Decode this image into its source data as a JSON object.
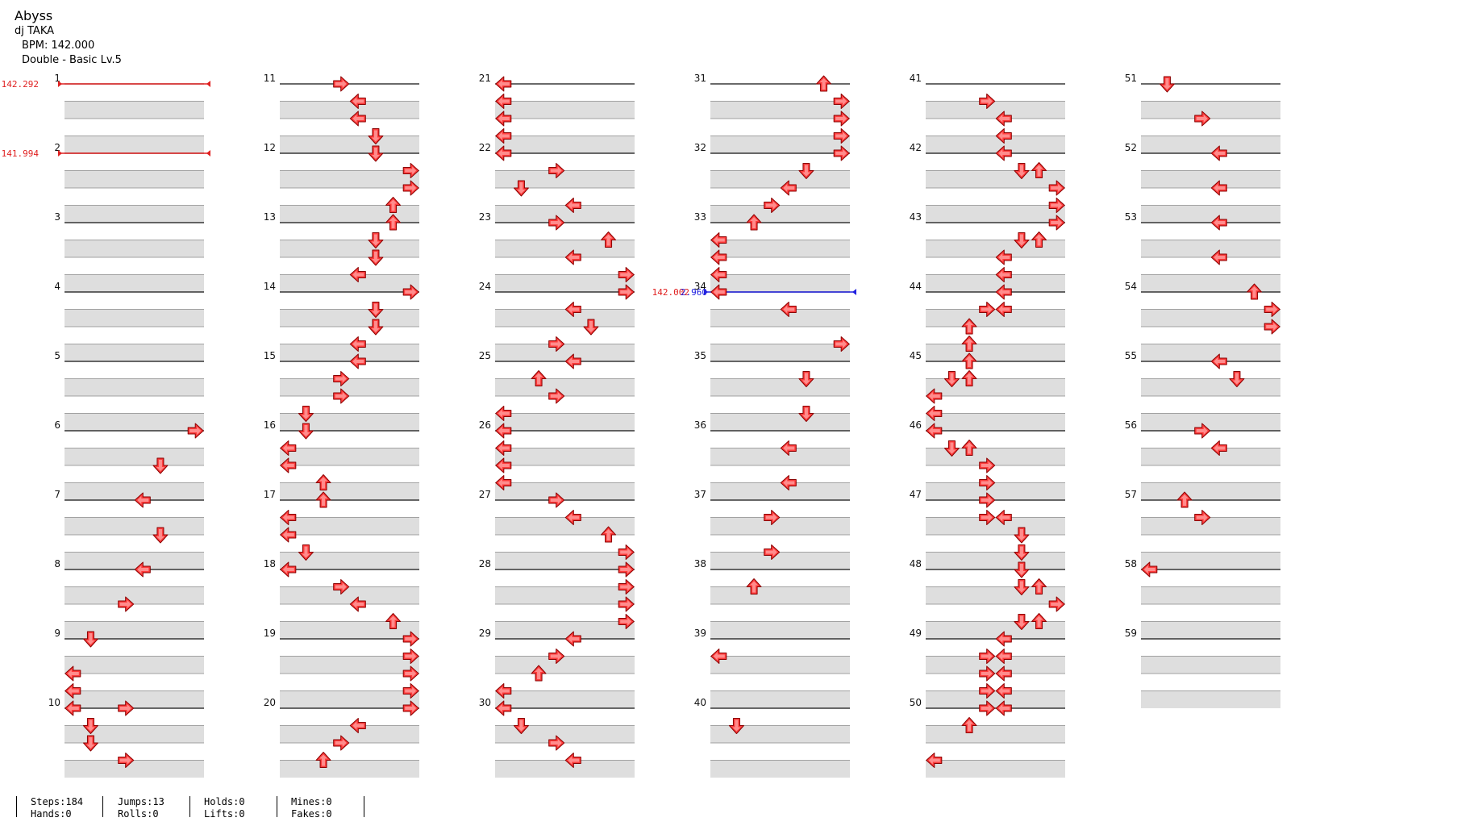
{
  "song": {
    "title": "Abyss",
    "artist": "dj TAKA",
    "bpm_label": "BPM: 142.000",
    "difficulty_label": "Double - Basic  Lv.5"
  },
  "chart": {
    "measures_total": 59,
    "measures_per_column": 10,
    "lanes": 8,
    "stripes_per_measure": 4,
    "bpm_changes": [
      {
        "measure": 1,
        "label": "142.292",
        "color": "#e02020"
      },
      {
        "measure": 2,
        "label": "141.994",
        "color": "#e02020"
      },
      {
        "measure": 34,
        "label": "142.002",
        "color": "#e02020",
        "stop_label": "2.960",
        "stop_color": "#2020e0"
      }
    ],
    "arrow_color": "#ff3b3b",
    "notes": [
      {
        "m": 6,
        "b": 0,
        "l": 7
      },
      {
        "m": 6,
        "b": 2,
        "l": 5
      },
      {
        "m": 7,
        "b": 0,
        "l": 4
      },
      {
        "m": 7,
        "b": 2,
        "l": 5
      },
      {
        "m": 8,
        "b": 0,
        "l": 4
      },
      {
        "m": 8,
        "b": 2,
        "l": 3
      },
      {
        "m": 9,
        "b": 0,
        "l": 1
      },
      {
        "m": 9,
        "b": 2,
        "l": 0
      },
      {
        "m": 9,
        "b": 3,
        "l": 0
      },
      {
        "m": 10,
        "b": 0,
        "l": 0
      },
      {
        "m": 10,
        "b": 0,
        "l": 3
      },
      {
        "m": 10,
        "b": 1,
        "l": 1
      },
      {
        "m": 10,
        "b": 2,
        "l": 1
      },
      {
        "m": 10,
        "b": 3,
        "l": 3
      },
      {
        "m": 11,
        "b": 0,
        "l": 3
      },
      {
        "m": 11,
        "b": 1,
        "l": 4
      },
      {
        "m": 11,
        "b": 2,
        "l": 4
      },
      {
        "m": 11,
        "b": 3,
        "l": 5
      },
      {
        "m": 12,
        "b": 0,
        "l": 5
      },
      {
        "m": 12,
        "b": 1,
        "l": 7
      },
      {
        "m": 12,
        "b": 2,
        "l": 7
      },
      {
        "m": 12,
        "b": 3,
        "l": 6
      },
      {
        "m": 13,
        "b": 0,
        "l": 6
      },
      {
        "m": 13,
        "b": 1,
        "l": 5
      },
      {
        "m": 13,
        "b": 2,
        "l": 5
      },
      {
        "m": 13,
        "b": 3,
        "l": 4
      },
      {
        "m": 14,
        "b": 0,
        "l": 7
      },
      {
        "m": 14,
        "b": 1,
        "l": 5
      },
      {
        "m": 14,
        "b": 2,
        "l": 5
      },
      {
        "m": 14,
        "b": 3,
        "l": 4
      },
      {
        "m": 15,
        "b": 0,
        "l": 4
      },
      {
        "m": 15,
        "b": 1,
        "l": 3
      },
      {
        "m": 15,
        "b": 2,
        "l": 3
      },
      {
        "m": 15,
        "b": 3,
        "l": 1
      },
      {
        "m": 16,
        "b": 0,
        "l": 1
      },
      {
        "m": 16,
        "b": 1,
        "l": 0
      },
      {
        "m": 16,
        "b": 2,
        "l": 0
      },
      {
        "m": 16,
        "b": 3,
        "l": 2
      },
      {
        "m": 17,
        "b": 0,
        "l": 2
      },
      {
        "m": 17,
        "b": 1,
        "l": 0
      },
      {
        "m": 17,
        "b": 2,
        "l": 0
      },
      {
        "m": 17,
        "b": 3,
        "l": 1
      },
      {
        "m": 18,
        "b": 0,
        "l": 0
      },
      {
        "m": 18,
        "b": 1,
        "l": 3
      },
      {
        "m": 18,
        "b": 2,
        "l": 4
      },
      {
        "m": 18,
        "b": 3,
        "l": 6
      },
      {
        "m": 19,
        "b": 0,
        "l": 7
      },
      {
        "m": 19,
        "b": 1,
        "l": 7
      },
      {
        "m": 19,
        "b": 2,
        "l": 7
      },
      {
        "m": 19,
        "b": 3,
        "l": 7
      },
      {
        "m": 20,
        "b": 0,
        "l": 7
      },
      {
        "m": 20,
        "b": 1,
        "l": 4
      },
      {
        "m": 20,
        "b": 2,
        "l": 3
      },
      {
        "m": 20,
        "b": 3,
        "l": 2
      },
      {
        "m": 21,
        "b": 0,
        "l": 0
      },
      {
        "m": 21,
        "b": 1,
        "l": 0
      },
      {
        "m": 21,
        "b": 2,
        "l": 0
      },
      {
        "m": 21,
        "b": 3,
        "l": 0
      },
      {
        "m": 22,
        "b": 0,
        "l": 0
      },
      {
        "m": 22,
        "b": 1,
        "l": 3
      },
      {
        "m": 22,
        "b": 2,
        "l": 1
      },
      {
        "m": 22,
        "b": 3,
        "l": 4
      },
      {
        "m": 23,
        "b": 0,
        "l": 3
      },
      {
        "m": 23,
        "b": 1,
        "l": 6
      },
      {
        "m": 23,
        "b": 2,
        "l": 4
      },
      {
        "m": 23,
        "b": 3,
        "l": 7
      },
      {
        "m": 24,
        "b": 0,
        "l": 7
      },
      {
        "m": 24,
        "b": 1,
        "l": 4
      },
      {
        "m": 24,
        "b": 2,
        "l": 5
      },
      {
        "m": 24,
        "b": 3,
        "l": 3
      },
      {
        "m": 25,
        "b": 0,
        "l": 4
      },
      {
        "m": 25,
        "b": 1,
        "l": 2
      },
      {
        "m": 25,
        "b": 2,
        "l": 3
      },
      {
        "m": 25,
        "b": 3,
        "l": 0
      },
      {
        "m": 26,
        "b": 0,
        "l": 0
      },
      {
        "m": 26,
        "b": 1,
        "l": 0
      },
      {
        "m": 26,
        "b": 2,
        "l": 0
      },
      {
        "m": 26,
        "b": 3,
        "l": 0
      },
      {
        "m": 27,
        "b": 0,
        "l": 3
      },
      {
        "m": 27,
        "b": 1,
        "l": 4
      },
      {
        "m": 27,
        "b": 2,
        "l": 6
      },
      {
        "m": 27,
        "b": 3,
        "l": 7
      },
      {
        "m": 28,
        "b": 0,
        "l": 7
      },
      {
        "m": 28,
        "b": 1,
        "l": 7
      },
      {
        "m": 28,
        "b": 2,
        "l": 7
      },
      {
        "m": 28,
        "b": 3,
        "l": 7
      },
      {
        "m": 29,
        "b": 0,
        "l": 4
      },
      {
        "m": 29,
        "b": 1,
        "l": 3
      },
      {
        "m": 29,
        "b": 2,
        "l": 2
      },
      {
        "m": 29,
        "b": 3,
        "l": 0
      },
      {
        "m": 30,
        "b": 0,
        "l": 0
      },
      {
        "m": 30,
        "b": 1,
        "l": 1
      },
      {
        "m": 30,
        "b": 2,
        "l": 3
      },
      {
        "m": 30,
        "b": 3,
        "l": 4
      },
      {
        "m": 31,
        "b": 0,
        "l": 6
      },
      {
        "m": 31,
        "b": 1,
        "l": 7
      },
      {
        "m": 31,
        "b": 2,
        "l": 7
      },
      {
        "m": 31,
        "b": 3,
        "l": 7
      },
      {
        "m": 32,
        "b": 0,
        "l": 7
      },
      {
        "m": 32,
        "b": 1,
        "l": 5
      },
      {
        "m": 32,
        "b": 2,
        "l": 4
      },
      {
        "m": 32,
        "b": 3,
        "l": 3
      },
      {
        "m": 33,
        "b": 0,
        "l": 2
      },
      {
        "m": 33,
        "b": 1,
        "l": 0
      },
      {
        "m": 33,
        "b": 2,
        "l": 0
      },
      {
        "m": 33,
        "b": 3,
        "l": 0
      },
      {
        "m": 34,
        "b": 0,
        "l": 0
      },
      {
        "m": 34,
        "b": 1,
        "l": 4
      },
      {
        "m": 34,
        "b": 3,
        "l": 7
      },
      {
        "m": 35,
        "b": 1,
        "l": 5
      },
      {
        "m": 35,
        "b": 3,
        "l": 5
      },
      {
        "m": 36,
        "b": 1,
        "l": 4
      },
      {
        "m": 36,
        "b": 3,
        "l": 4
      },
      {
        "m": 37,
        "b": 1,
        "l": 3
      },
      {
        "m": 37,
        "b": 3,
        "l": 3
      },
      {
        "m": 38,
        "b": 1,
        "l": 2
      },
      {
        "m": 39,
        "b": 1,
        "l": 0
      },
      {
        "m": 40,
        "b": 1,
        "l": 1
      },
      {
        "m": 41,
        "b": 1,
        "l": 3
      },
      {
        "m": 41,
        "b": 2,
        "l": 4
      },
      {
        "m": 41,
        "b": 3,
        "l": 4
      },
      {
        "m": 42,
        "b": 0,
        "l": 4
      },
      {
        "m": 42,
        "b": 1,
        "l": 5
      },
      {
        "m": 42,
        "b": 1,
        "l": 6
      },
      {
        "m": 42,
        "b": 2,
        "l": 7
      },
      {
        "m": 42,
        "b": 3,
        "l": 7
      },
      {
        "m": 43,
        "b": 0,
        "l": 7
      },
      {
        "m": 43,
        "b": 1,
        "l": 5
      },
      {
        "m": 43,
        "b": 1,
        "l": 6
      },
      {
        "m": 43,
        "b": 2,
        "l": 4
      },
      {
        "m": 43,
        "b": 3,
        "l": 4
      },
      {
        "m": 44,
        "b": 0,
        "l": 4
      },
      {
        "m": 44,
        "b": 1,
        "l": 3
      },
      {
        "m": 44,
        "b": 1,
        "l": 4
      },
      {
        "m": 44,
        "b": 2,
        "l": 2
      },
      {
        "m": 44,
        "b": 3,
        "l": 2
      },
      {
        "m": 45,
        "b": 0,
        "l": 2
      },
      {
        "m": 45,
        "b": 1,
        "l": 1
      },
      {
        "m": 45,
        "b": 1,
        "l": 2
      },
      {
        "m": 45,
        "b": 2,
        "l": 0
      },
      {
        "m": 45,
        "b": 3,
        "l": 0
      },
      {
        "m": 46,
        "b": 0,
        "l": 0
      },
      {
        "m": 46,
        "b": 1,
        "l": 1
      },
      {
        "m": 46,
        "b": 1,
        "l": 2
      },
      {
        "m": 46,
        "b": 2,
        "l": 3
      },
      {
        "m": 46,
        "b": 3,
        "l": 3
      },
      {
        "m": 47,
        "b": 0,
        "l": 3
      },
      {
        "m": 47,
        "b": 1,
        "l": 3
      },
      {
        "m": 47,
        "b": 1,
        "l": 4
      },
      {
        "m": 47,
        "b": 2,
        "l": 5
      },
      {
        "m": 47,
        "b": 3,
        "l": 5
      },
      {
        "m": 48,
        "b": 0,
        "l": 5
      },
      {
        "m": 48,
        "b": 1,
        "l": 5
      },
      {
        "m": 48,
        "b": 1,
        "l": 6
      },
      {
        "m": 48,
        "b": 2,
        "l": 7
      },
      {
        "m": 48,
        "b": 3,
        "l": 5
      },
      {
        "m": 48,
        "b": 3,
        "l": 6
      },
      {
        "m": 49,
        "b": 0,
        "l": 4
      },
      {
        "m": 49,
        "b": 1,
        "l": 3
      },
      {
        "m": 49,
        "b": 1,
        "l": 4
      },
      {
        "m": 49,
        "b": 2,
        "l": 3
      },
      {
        "m": 49,
        "b": 2,
        "l": 4
      },
      {
        "m": 49,
        "b": 3,
        "l": 3
      },
      {
        "m": 49,
        "b": 3,
        "l": 4
      },
      {
        "m": 50,
        "b": 0,
        "l": 3
      },
      {
        "m": 50,
        "b": 0,
        "l": 4
      },
      {
        "m": 50,
        "b": 1,
        "l": 2
      },
      {
        "m": 50,
        "b": 3,
        "l": 0
      },
      {
        "m": 51,
        "b": 0,
        "l": 1
      },
      {
        "m": 51,
        "b": 2,
        "l": 3
      },
      {
        "m": 52,
        "b": 0,
        "l": 4
      },
      {
        "m": 52,
        "b": 2,
        "l": 4
      },
      {
        "m": 53,
        "b": 0,
        "l": 4
      },
      {
        "m": 53,
        "b": 2,
        "l": 4
      },
      {
        "m": 54,
        "b": 0,
        "l": 6
      },
      {
        "m": 54,
        "b": 1,
        "l": 7
      },
      {
        "m": 54,
        "b": 2,
        "l": 7
      },
      {
        "m": 55,
        "b": 0,
        "l": 4
      },
      {
        "m": 55,
        "b": 1,
        "l": 5
      },
      {
        "m": 56,
        "b": 0,
        "l": 3
      },
      {
        "m": 56,
        "b": 1,
        "l": 4
      },
      {
        "m": 57,
        "b": 0,
        "l": 2
      },
      {
        "m": 57,
        "b": 1,
        "l": 3
      },
      {
        "m": 58,
        "b": 0,
        "l": 0
      }
    ]
  },
  "stats": {
    "steps": "Steps:184",
    "hands": "Hands:0",
    "jumps": "Jumps:13",
    "rolls": "Rolls:0",
    "holds": "Holds:0",
    "lifts": "Lifts:0",
    "mines": "Mines:0",
    "fakes": "Fakes:0"
  }
}
